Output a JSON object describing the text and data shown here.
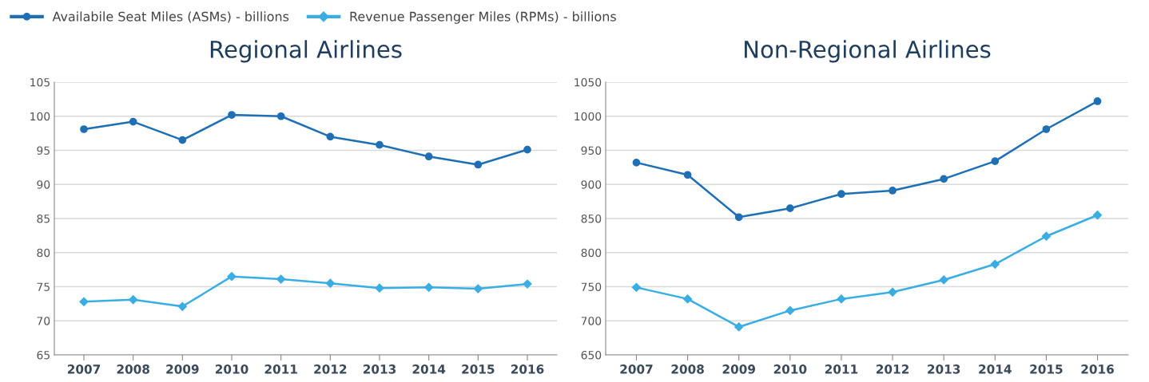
{
  "chart_data": [
    {
      "type": "line",
      "title": "Regional Airlines",
      "legend": "top left",
      "grid": "y",
      "categories": [
        "2007",
        "2008",
        "2009",
        "2010",
        "2011",
        "2012",
        "2013",
        "2014",
        "2015",
        "2016"
      ],
      "ylim": [
        65,
        105
      ],
      "yticks": [
        65,
        70,
        75,
        80,
        85,
        90,
        95,
        100,
        105
      ],
      "series": [
        {
          "name": "Availabile Seat Miles (ASMs) - billions",
          "color": "#1f6fb5",
          "marker": "circle",
          "values": [
            98.1,
            99.2,
            96.5,
            100.2,
            100.0,
            97.0,
            95.8,
            94.1,
            92.9,
            95.1
          ]
        },
        {
          "name": "Revenue Passenger Miles (RPMs) - billions",
          "color": "#3aade3",
          "marker": "diamond",
          "values": [
            72.8,
            73.1,
            72.1,
            76.5,
            76.1,
            75.5,
            74.8,
            74.9,
            74.7,
            75.4
          ]
        }
      ]
    },
    {
      "type": "line",
      "title": "Non-Regional Airlines",
      "grid": "y",
      "categories": [
        "2007",
        "2008",
        "2009",
        "2010",
        "2011",
        "2012",
        "2013",
        "2014",
        "2015",
        "2016"
      ],
      "ylim": [
        650,
        1050
      ],
      "yticks": [
        650,
        700,
        750,
        800,
        850,
        900,
        950,
        1000,
        1050
      ],
      "series": [
        {
          "color": "#1f6fb5",
          "marker": "circle",
          "values": [
            932,
            914,
            852,
            865,
            886,
            891,
            908,
            934,
            981,
            1022
          ]
        },
        {
          "color": "#3aade3",
          "marker": "diamond",
          "values": [
            749,
            732,
            691,
            715,
            732,
            742,
            760,
            783,
            824,
            855
          ]
        }
      ]
    }
  ]
}
